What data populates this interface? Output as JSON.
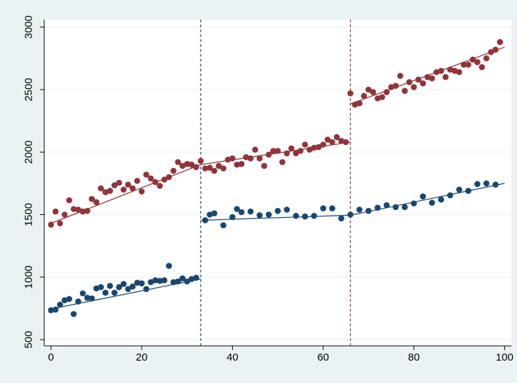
{
  "chart_data": {
    "type": "scatter",
    "title": "",
    "xlabel": "",
    "ylabel": "",
    "xlim": [
      -1.5,
      101.5
    ],
    "ylim": [
      450,
      3060
    ],
    "x_ticks": [
      0,
      20,
      40,
      60,
      80,
      100
    ],
    "y_ticks": [
      500,
      1000,
      1500,
      2000,
      2500,
      3000
    ],
    "grid": "horizontal",
    "legend": "none",
    "vlines": [
      {
        "x": 33,
        "color": "#1a476f"
      },
      {
        "x": 66,
        "color": "#90353b"
      }
    ],
    "series": [
      {
        "color": "#1a476f",
        "x": [
          0,
          1,
          2,
          3,
          4,
          5,
          6,
          7,
          8,
          9,
          10,
          11,
          12,
          13,
          14,
          15,
          16,
          17,
          18,
          19,
          20,
          21,
          22,
          23,
          24,
          25,
          26,
          27,
          28,
          29,
          30,
          31,
          32,
          34,
          35,
          36,
          38,
          40,
          41,
          42,
          44,
          46,
          48,
          50,
          52,
          54,
          56,
          58,
          60,
          62,
          64,
          66,
          68,
          70,
          72,
          74,
          76,
          78,
          80,
          82,
          84,
          86,
          88,
          90,
          92,
          94,
          96,
          98
        ],
        "y": [
          735,
          740,
          780,
          815,
          825,
          705,
          805,
          870,
          835,
          830,
          910,
          920,
          875,
          930,
          875,
          920,
          945,
          905,
          925,
          955,
          950,
          905,
          960,
          975,
          970,
          975,
          1090,
          960,
          965,
          990,
          965,
          985,
          995,
          1455,
          1500,
          1510,
          1415,
          1480,
          1545,
          1520,
          1525,
          1495,
          1500,
          1530,
          1540,
          1490,
          1485,
          1490,
          1550,
          1550,
          1470,
          1500,
          1540,
          1530,
          1555,
          1575,
          1560,
          1560,
          1590,
          1645,
          1595,
          1620,
          1655,
          1700,
          1690,
          1745,
          1750,
          1740
        ],
        "fit": [
          {
            "x": [
              0,
              33
            ],
            "y": [
              745,
              985
            ]
          },
          {
            "x": [
              33,
              66
            ],
            "y": [
              1455,
              1495
            ]
          },
          {
            "x": [
              66,
              100
            ],
            "y": [
              1495,
              1750
            ]
          }
        ]
      },
      {
        "color": "#90353b",
        "x": [
          0,
          1,
          2,
          3,
          4,
          5,
          6,
          7,
          8,
          9,
          10,
          11,
          12,
          13,
          14,
          15,
          16,
          17,
          18,
          19,
          20,
          21,
          22,
          23,
          24,
          25,
          26,
          27,
          28,
          29,
          30,
          31,
          32,
          33,
          34,
          35,
          36,
          37,
          38,
          39,
          40,
          41,
          42,
          43,
          44,
          45,
          46,
          47,
          48,
          49,
          50,
          51,
          52,
          53,
          54,
          55,
          56,
          57,
          58,
          59,
          60,
          61,
          62,
          63,
          64,
          65,
          66,
          67,
          68,
          69,
          70,
          71,
          72,
          73,
          74,
          75,
          76,
          77,
          78,
          79,
          80,
          81,
          82,
          83,
          84,
          85,
          86,
          87,
          88,
          89,
          90,
          91,
          92,
          93,
          94,
          95,
          96,
          97,
          98,
          99
        ],
        "y": [
          1420,
          1525,
          1430,
          1500,
          1615,
          1545,
          1540,
          1525,
          1530,
          1625,
          1600,
          1710,
          1680,
          1690,
          1735,
          1755,
          1700,
          1740,
          1710,
          1770,
          1685,
          1820,
          1790,
          1760,
          1730,
          1780,
          1800,
          1850,
          1920,
          1890,
          1905,
          1900,
          1880,
          1930,
          1870,
          1875,
          1850,
          1890,
          1870,
          1940,
          1950,
          1900,
          1905,
          1960,
          1950,
          2020,
          1950,
          1890,
          1980,
          2010,
          2010,
          1920,
          1990,
          2030,
          1990,
          2010,
          2060,
          2020,
          2035,
          2040,
          2060,
          2100,
          2080,
          2120,
          2090,
          2080,
          2470,
          2380,
          2390,
          2450,
          2500,
          2480,
          2430,
          2440,
          2480,
          2520,
          2530,
          2610,
          2490,
          2560,
          2520,
          2580,
          2550,
          2600,
          2590,
          2640,
          2650,
          2600,
          2660,
          2650,
          2640,
          2700,
          2700,
          2740,
          2720,
          2680,
          2750,
          2800,
          2820,
          2880
        ],
        "fit": [
          {
            "x": [
              0,
              33
            ],
            "y": [
              1430,
              1900
            ]
          },
          {
            "x": [
              33,
              66
            ],
            "y": [
              1900,
              2080
            ]
          },
          {
            "x": [
              66,
              100
            ],
            "y": [
              2385,
              2840
            ]
          }
        ]
      }
    ]
  }
}
